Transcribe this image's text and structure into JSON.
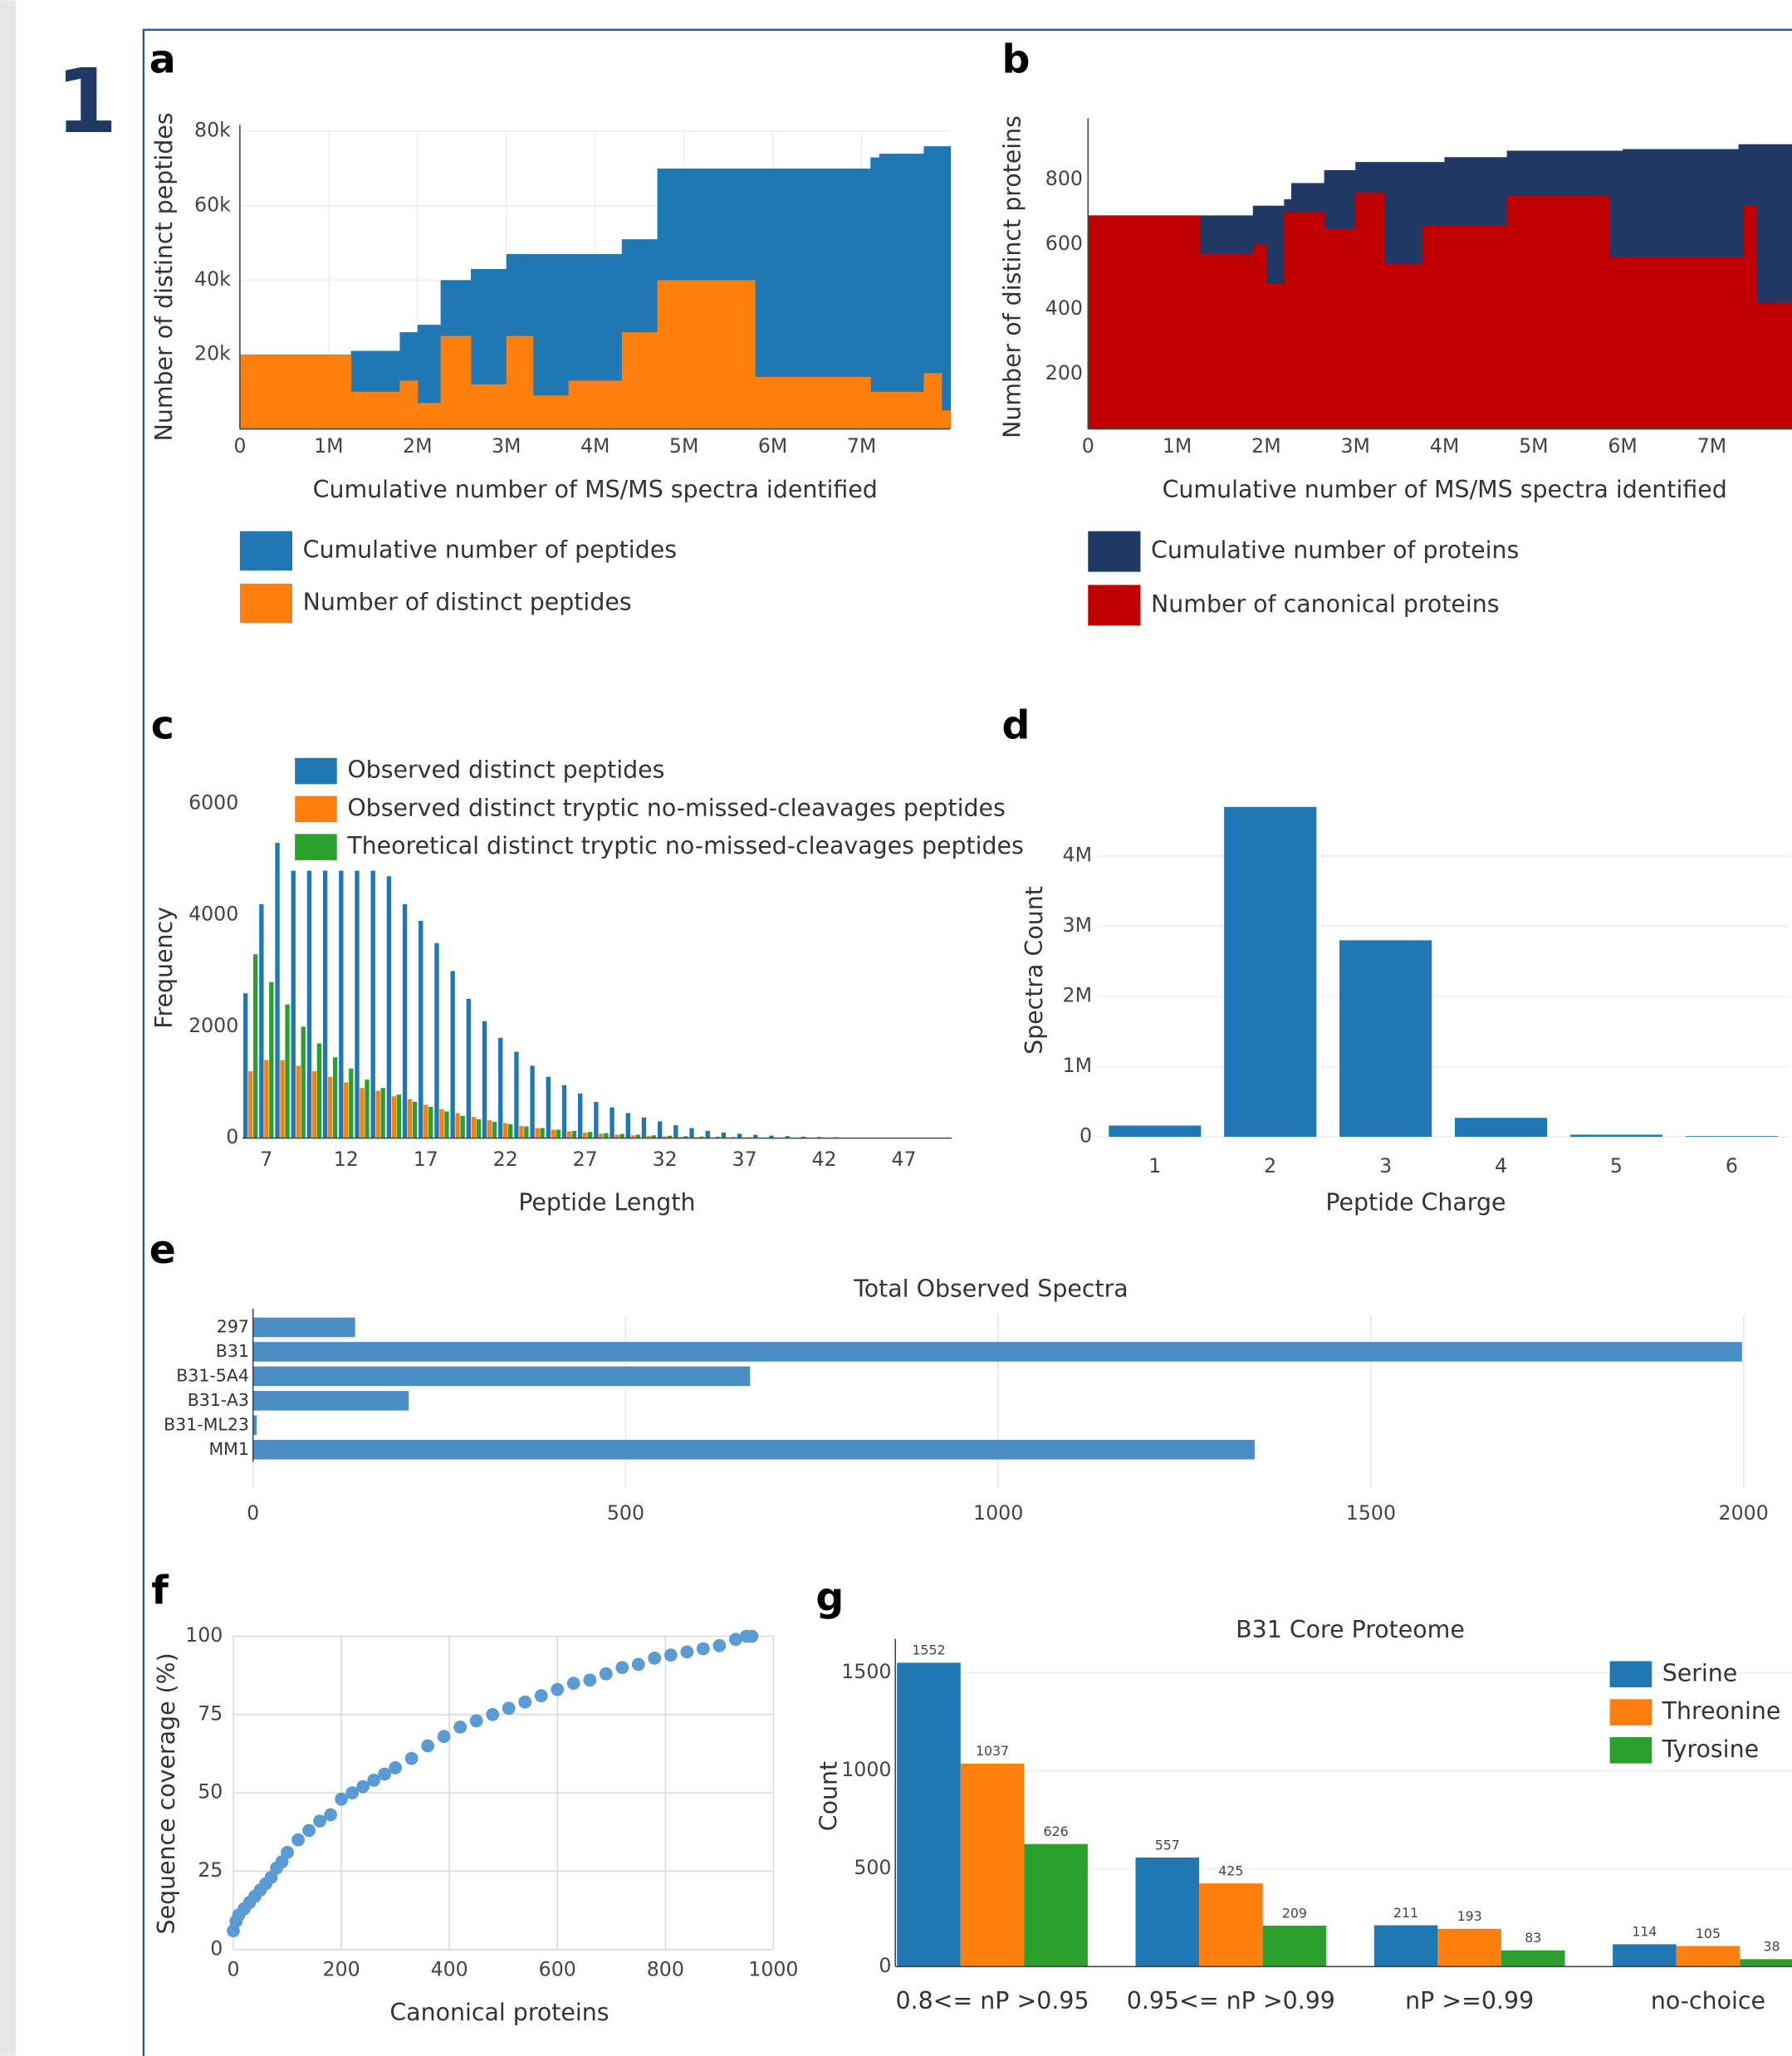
{
  "figure_label": "1",
  "chart_data": [
    {
      "panel": "a",
      "type": "step",
      "x_label": "Cumulative number of MS/MS spectra identified",
      "y_label": "Number of distinct peptides",
      "x": [
        0,
        1250000,
        1800000,
        2000000,
        2260000,
        2600000,
        3000000,
        3300000,
        3700000,
        4300000,
        4700000,
        5800000,
        7100000,
        7200000,
        7700000,
        7900000
      ],
      "series": [
        {
          "name": "Cumulative number of peptides",
          "color": "#1f77b4",
          "values": [
            20000,
            21000,
            26000,
            28000,
            40000,
            43000,
            47000,
            47000,
            47000,
            51000,
            70000,
            70000,
            73000,
            74000,
            76000,
            76000
          ]
        },
        {
          "name": "Number of distinct peptides",
          "color": "#ff7f0e",
          "values": [
            20000,
            10000,
            13000,
            7000,
            25000,
            12000,
            25000,
            9000,
            13000,
            26000,
            40000,
            14000,
            10000,
            10000,
            15000,
            5000
          ]
        }
      ],
      "xlim": [
        0,
        8000000
      ],
      "xticks": [
        0,
        {
          "value": 1000000,
          "label": "1M"
        },
        {
          "value": 2000000,
          "label": "2M"
        },
        {
          "value": 3000000,
          "label": "3M"
        },
        {
          "value": 4000000,
          "label": "4M"
        },
        {
          "value": 5000000,
          "label": "5M"
        },
        {
          "value": 6000000,
          "label": "6M"
        },
        {
          "value": 7000000,
          "label": "7M"
        }
      ],
      "ylim": [
        0,
        80000
      ],
      "yticks": [
        {
          "value": 20000,
          "label": "20k"
        },
        {
          "value": 40000,
          "label": "40k"
        },
        {
          "value": 60000,
          "label": "60k"
        },
        {
          "value": 80000,
          "label": "80k"
        }
      ],
      "grid": true,
      "legend": "bottom"
    },
    {
      "panel": "b",
      "type": "step",
      "x_label": "Cumulative number of MS/MS spectra identified",
      "y_label": "Number of distinct proteins",
      "x": [
        0,
        1250000,
        1850000,
        2000000,
        2200000,
        2280000,
        2650000,
        3000000,
        3330000,
        3750000,
        4000000,
        4700000,
        5850000,
        6000000,
        7300000,
        7350000,
        7500000
      ],
      "series": [
        {
          "name": "Cumulative number of proteins",
          "color": "#1f3864",
          "values": [
            690,
            690,
            720,
            720,
            740,
            790,
            830,
            855,
            855,
            855,
            870,
            890,
            890,
            895,
            910,
            910,
            910
          ]
        },
        {
          "name": "Number of canonical proteins",
          "color": "#c00000",
          "values": [
            690,
            570,
            600,
            480,
            700,
            700,
            650,
            760,
            540,
            660,
            660,
            750,
            560,
            560,
            560,
            720,
            420
          ]
        }
      ],
      "xlim": [
        0,
        7900000
      ],
      "xticks": [
        0,
        {
          "value": 1000000,
          "label": "1M"
        },
        {
          "value": 2000000,
          "label": "2M"
        },
        {
          "value": 3000000,
          "label": "3M"
        },
        {
          "value": 4000000,
          "label": "4M"
        },
        {
          "value": 5000000,
          "label": "5M"
        },
        {
          "value": 6000000,
          "label": "6M"
        },
        {
          "value": 7000000,
          "label": "7M"
        }
      ],
      "ylim": [
        30,
        970
      ],
      "yticks": [
        200,
        400,
        600,
        800
      ],
      "grid": false,
      "legend": "bottom"
    },
    {
      "panel": "c",
      "type": "bar",
      "x_label": "Peptide Length",
      "y_label": "Frequency",
      "x": [
        6,
        7,
        8,
        9,
        10,
        11,
        12,
        13,
        14,
        15,
        16,
        17,
        18,
        19,
        20,
        21,
        22,
        23,
        24,
        25,
        26,
        27,
        28,
        29,
        30,
        31,
        32,
        33,
        34,
        35,
        36,
        37,
        38,
        39,
        40,
        41,
        42,
        43,
        44,
        45,
        46,
        47,
        48,
        49
      ],
      "series": [
        {
          "name": "Observed distinct peptides",
          "color": "#1f77b4",
          "values": [
            2600,
            4200,
            5300,
            4800,
            4800,
            4800,
            4800,
            4800,
            4800,
            4700,
            4200,
            3900,
            3500,
            3000,
            2500,
            2100,
            1800,
            1550,
            1300,
            1100,
            950,
            800,
            650,
            550,
            450,
            370,
            300,
            230,
            180,
            130,
            100,
            80,
            60,
            45,
            35,
            25,
            20,
            15,
            10,
            8,
            6,
            4,
            3,
            2
          ]
        },
        {
          "name": "Observed distinct tryptic no-missed-cleavages peptides",
          "color": "#ff7f0e",
          "values": [
            1200,
            1400,
            1400,
            1300,
            1200,
            1100,
            1000,
            900,
            850,
            750,
            700,
            600,
            520,
            450,
            380,
            320,
            270,
            220,
            180,
            150,
            120,
            100,
            80,
            60,
            50,
            40,
            30,
            22,
            16,
            12,
            9,
            7,
            5,
            4,
            3,
            2,
            2,
            1,
            1,
            1,
            0,
            0,
            0,
            0
          ]
        },
        {
          "name": "Theoretical distinct tryptic no-missed-cleavages peptides",
          "color": "#2ca02c",
          "values": [
            3300,
            2800,
            2400,
            2000,
            1700,
            1450,
            1250,
            1050,
            900,
            780,
            650,
            560,
            480,
            400,
            340,
            290,
            250,
            210,
            180,
            150,
            130,
            110,
            90,
            75,
            62,
            50,
            42,
            35,
            28,
            23,
            18,
            15,
            12,
            10,
            8,
            6,
            5,
            4,
            3,
            2,
            2,
            1,
            1,
            1
          ]
        }
      ],
      "xlim": [
        5.5,
        50
      ],
      "xticks": [
        7,
        12,
        17,
        22,
        27,
        32,
        37,
        42,
        47
      ],
      "ylim": [
        0,
        6000
      ],
      "yticks": [
        0,
        2000,
        4000,
        6000
      ],
      "grid": false,
      "legend": "top-left"
    },
    {
      "panel": "d",
      "type": "bar",
      "x_label": "Peptide Charge",
      "y_label": "Spectra Count",
      "categories": [
        "1",
        "2",
        "3",
        "4",
        "5",
        "6"
      ],
      "values": [
        160000,
        4700000,
        2800000,
        270000,
        30000,
        10000
      ],
      "color": "#1f77b4",
      "ylim": [
        0,
        4800000
      ],
      "yticks": [
        0,
        {
          "value": 1000000,
          "label": "1M"
        },
        {
          "value": 2000000,
          "label": "2M"
        },
        {
          "value": 3000000,
          "label": "3M"
        },
        {
          "value": 4000000,
          "label": "4M"
        }
      ],
      "grid": true
    },
    {
      "panel": "e",
      "type": "bar",
      "orientation": "horizontal",
      "title": "Total Observed Spectra",
      "categories": [
        "297",
        "B31",
        "B31-5A4",
        "B31-A3",
        "B31-ML23",
        "MM1"
      ],
      "values": [
        137,
        1998,
        667,
        209,
        5,
        1344
      ],
      "color": "#4a8cc4",
      "xlim": [
        0,
        2065
      ],
      "xticks": [
        0,
        500,
        1000,
        1500,
        2000
      ],
      "grid": true
    },
    {
      "panel": "f",
      "type": "scatter",
      "x_label": "Canonical proteins",
      "y_label": "Sequence coverage (%)",
      "color": "#5b9bd5",
      "x": [
        0,
        5,
        10,
        20,
        30,
        40,
        50,
        60,
        70,
        80,
        90,
        100,
        120,
        140,
        160,
        180,
        200,
        220,
        240,
        260,
        280,
        300,
        330,
        360,
        390,
        420,
        450,
        480,
        510,
        540,
        570,
        600,
        630,
        660,
        690,
        720,
        750,
        780,
        810,
        840,
        870,
        900,
        930,
        950,
        960
      ],
      "values": [
        6,
        9,
        11,
        13,
        15,
        17,
        19,
        21,
        23,
        26,
        28,
        31,
        35,
        38,
        41,
        43,
        48,
        50,
        52,
        54,
        56,
        58,
        61,
        65,
        68,
        71,
        73,
        75,
        77,
        79,
        81,
        83,
        85,
        86,
        88,
        90,
        91,
        93,
        94,
        95,
        96,
        97,
        99,
        100,
        100
      ],
      "xlim": [
        0,
        1000
      ],
      "xticks": [
        0,
        200,
        400,
        600,
        800,
        1000
      ],
      "ylim": [
        0,
        100
      ],
      "yticks": [
        0,
        25,
        50,
        75,
        100
      ],
      "grid": true
    },
    {
      "panel": "g",
      "type": "bar",
      "title": "B31 Core Proteome",
      "y_label": "Count",
      "categories": [
        "0.8<= nP >0.95",
        "0.95<= nP >0.99",
        "nP >=0.99",
        "no-choice"
      ],
      "series": [
        {
          "name": "Serine",
          "color": "#1f77b4",
          "values": [
            1552,
            557,
            211,
            114
          ]
        },
        {
          "name": "Threonine",
          "color": "#ff7f0e",
          "values": [
            1037,
            425,
            193,
            105
          ]
        },
        {
          "name": "Tyrosine",
          "color": "#2ca02c",
          "values": [
            626,
            209,
            83,
            38
          ]
        }
      ],
      "ylim": [
        0,
        1674
      ],
      "yticks": [
        0,
        500,
        1000,
        1500
      ],
      "grid": true,
      "data_labels": true,
      "legend": "top-right"
    }
  ]
}
